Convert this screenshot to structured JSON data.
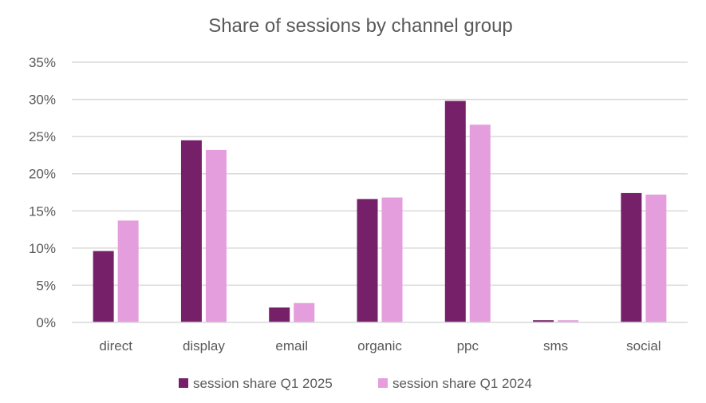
{
  "chart_data": {
    "type": "bar",
    "title": "Share of sessions by channel group",
    "xlabel": "",
    "ylabel": "",
    "categories": [
      "direct",
      "display",
      "email",
      "organic",
      "ppc",
      "sms",
      "social"
    ],
    "series": [
      {
        "name": "session share Q1 2025",
        "color": "#76206a",
        "values": [
          9.6,
          24.5,
          2.0,
          16.6,
          29.8,
          0.3,
          17.4
        ]
      },
      {
        "name": "session share Q1 2024",
        "color": "#e59edd",
        "values": [
          13.7,
          23.2,
          2.6,
          16.8,
          26.6,
          0.3,
          17.2
        ]
      }
    ],
    "ylim": [
      0,
      35
    ],
    "yticks": [
      "0%",
      "5%",
      "10%",
      "15%",
      "20%",
      "25%",
      "30%",
      "35%"
    ],
    "grid": true,
    "legend_position": "bottom"
  }
}
